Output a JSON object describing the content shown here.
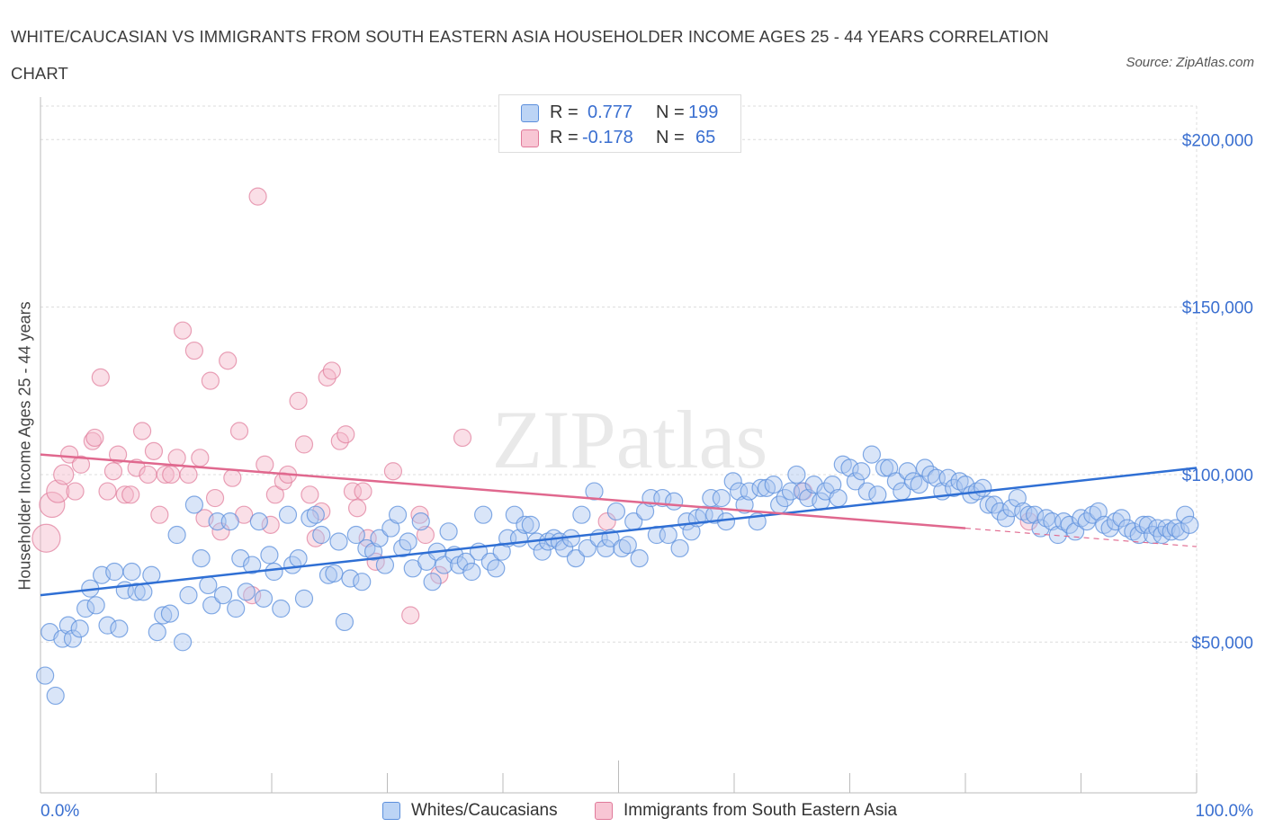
{
  "header": {
    "title": "WHITE/CAUCASIAN VS IMMIGRANTS FROM SOUTH EASTERN ASIA HOUSEHOLDER INCOME AGES 25 - 44 YEARS CORRELATION CHART",
    "source": "Source: ZipAtlas.com"
  },
  "watermark": "ZIPatlas",
  "legend_top": {
    "rows": [
      {
        "r_key": "R =",
        "r_value": "0.777",
        "n_key": "N =",
        "n_value": "199"
      },
      {
        "r_key": "R =",
        "r_value": "-0.178",
        "n_key": "N =",
        "n_value": "65"
      }
    ]
  },
  "legend_bottom": {
    "items": [
      {
        "label": "Whites/Caucasians"
      },
      {
        "label": "Immigrants from South Eastern Asia"
      }
    ]
  },
  "colors": {
    "blue_fill": "#aac6f0",
    "blue_stroke": "#5b8fdc",
    "blue_line": "#2f6fd4",
    "pink_fill": "#f5b8ca",
    "pink_stroke": "#e07a9a",
    "pink_line": "#e0688e",
    "axis_text": "#3a6fd0",
    "grid": "#dcdcdc"
  },
  "chart_data": {
    "type": "scatter",
    "title": "WHITE/CAUCASIAN VS IMMIGRANTS FROM SOUTH EASTERN ASIA HOUSEHOLDER INCOME AGES 25 - 44 YEARS CORRELATION CHART",
    "xlabel": "",
    "ylabel": "Householder Income Ages 25 - 44 years",
    "xlim": [
      0,
      100
    ],
    "ylim": [
      5000,
      210000
    ],
    "x_tick_labels": [
      "0.0%",
      "100.0%"
    ],
    "y_ticks": [
      50000,
      100000,
      150000,
      200000
    ],
    "y_tick_labels": [
      "$50,000",
      "$100,000",
      "$150,000",
      "$200,000"
    ],
    "grid": true,
    "legend_position": "top-center",
    "series": [
      {
        "name": "Whites/Caucasians",
        "r": 0.777,
        "n": 199,
        "trend": {
          "x": [
            0,
            100
          ],
          "y": [
            64000,
            102000
          ]
        },
        "points": [
          [
            0.4,
            40000
          ],
          [
            0.8,
            53000
          ],
          [
            1.3,
            34000
          ],
          [
            1.9,
            51000
          ],
          [
            2.4,
            55000
          ],
          [
            2.8,
            51000
          ],
          [
            3.4,
            54000
          ],
          [
            3.9,
            60000
          ],
          [
            4.3,
            66000
          ],
          [
            4.8,
            61000
          ],
          [
            5.3,
            70000
          ],
          [
            5.8,
            55000
          ],
          [
            6.4,
            71000
          ],
          [
            6.8,
            54000
          ],
          [
            7.3,
            65500
          ],
          [
            7.9,
            71000
          ],
          [
            8.3,
            65000
          ],
          [
            8.9,
            65000
          ],
          [
            9.6,
            70000
          ],
          [
            10.1,
            53000
          ],
          [
            10.6,
            58000
          ],
          [
            11.2,
            58500
          ],
          [
            11.8,
            82000
          ],
          [
            12.3,
            50000
          ],
          [
            12.8,
            64000
          ],
          [
            13.3,
            91000
          ],
          [
            13.9,
            75000
          ],
          [
            14.5,
            67000
          ],
          [
            14.8,
            61000
          ],
          [
            15.3,
            86000
          ],
          [
            15.8,
            64000
          ],
          [
            16.4,
            86000
          ],
          [
            16.9,
            60000
          ],
          [
            17.3,
            75000
          ],
          [
            17.8,
            65000
          ],
          [
            18.3,
            73000
          ],
          [
            18.9,
            86000
          ],
          [
            19.3,
            63000
          ],
          [
            19.8,
            76000
          ],
          [
            20.2,
            71000
          ],
          [
            20.8,
            60000
          ],
          [
            21.4,
            88000
          ],
          [
            21.8,
            73000
          ],
          [
            22.3,
            75000
          ],
          [
            22.8,
            63000
          ],
          [
            23.3,
            87000
          ],
          [
            23.8,
            88000
          ],
          [
            24.3,
            82000
          ],
          [
            24.9,
            70000
          ],
          [
            25.4,
            70500
          ],
          [
            25.8,
            80000
          ],
          [
            26.3,
            56000
          ],
          [
            26.8,
            69000
          ],
          [
            27.3,
            82000
          ],
          [
            27.8,
            68000
          ],
          [
            28.2,
            78000
          ],
          [
            28.8,
            77000
          ],
          [
            29.3,
            81000
          ],
          [
            29.8,
            73000
          ],
          [
            30.3,
            84000
          ],
          [
            30.9,
            88000
          ],
          [
            31.3,
            78000
          ],
          [
            31.8,
            80000
          ],
          [
            32.2,
            72000
          ],
          [
            32.9,
            86000
          ],
          [
            33.4,
            74000
          ],
          [
            33.9,
            68000
          ],
          [
            34.3,
            77000
          ],
          [
            34.9,
            73000
          ],
          [
            35.3,
            83000
          ],
          [
            35.8,
            76000
          ],
          [
            36.2,
            73000
          ],
          [
            36.8,
            74000
          ],
          [
            37.3,
            71000
          ],
          [
            37.9,
            77000
          ],
          [
            38.3,
            88000
          ],
          [
            38.9,
            74000
          ],
          [
            39.4,
            72000
          ],
          [
            39.9,
            77000
          ],
          [
            40.4,
            81000
          ],
          [
            41.0,
            88000
          ],
          [
            41.4,
            81000
          ],
          [
            41.9,
            85000
          ],
          [
            42.4,
            85000
          ],
          [
            42.9,
            80000
          ],
          [
            43.4,
            77000
          ],
          [
            43.9,
            80000
          ],
          [
            44.4,
            81000
          ],
          [
            44.9,
            80000
          ],
          [
            45.3,
            78000
          ],
          [
            45.9,
            81000
          ],
          [
            46.3,
            75000
          ],
          [
            46.8,
            88000
          ],
          [
            47.3,
            78000
          ],
          [
            47.9,
            95000
          ],
          [
            48.3,
            81000
          ],
          [
            48.9,
            78000
          ],
          [
            49.3,
            81000
          ],
          [
            49.8,
            89000
          ],
          [
            50.3,
            78000
          ],
          [
            50.8,
            79000
          ],
          [
            51.3,
            86000
          ],
          [
            51.8,
            75000
          ],
          [
            52.3,
            89000
          ],
          [
            52.8,
            93000
          ],
          [
            53.3,
            82000
          ],
          [
            53.8,
            93000
          ],
          [
            54.3,
            82000
          ],
          [
            54.8,
            92000
          ],
          [
            55.3,
            78000
          ],
          [
            55.9,
            86000
          ],
          [
            56.3,
            83000
          ],
          [
            56.8,
            87000
          ],
          [
            57.4,
            88000
          ],
          [
            58.0,
            93000
          ],
          [
            58.3,
            88000
          ],
          [
            58.9,
            93000
          ],
          [
            59.3,
            86000
          ],
          [
            59.9,
            98000
          ],
          [
            60.4,
            95000
          ],
          [
            60.9,
            91000
          ],
          [
            61.3,
            95000
          ],
          [
            62.0,
            86000
          ],
          [
            62.3,
            96000
          ],
          [
            62.8,
            96000
          ],
          [
            63.4,
            97000
          ],
          [
            63.9,
            91000
          ],
          [
            64.4,
            93000
          ],
          [
            64.9,
            95000
          ],
          [
            65.4,
            100000
          ],
          [
            65.9,
            95000
          ],
          [
            66.4,
            93000
          ],
          [
            66.9,
            97000
          ],
          [
            67.5,
            92000
          ],
          [
            67.9,
            95000
          ],
          [
            68.5,
            97000
          ],
          [
            69.0,
            93000
          ],
          [
            69.4,
            103000
          ],
          [
            70.0,
            102000
          ],
          [
            70.5,
            98000
          ],
          [
            71.0,
            101000
          ],
          [
            71.5,
            95000
          ],
          [
            71.9,
            106000
          ],
          [
            72.4,
            94000
          ],
          [
            73.0,
            102000
          ],
          [
            73.4,
            102000
          ],
          [
            74.0,
            98000
          ],
          [
            74.5,
            95000
          ],
          [
            75.0,
            101000
          ],
          [
            75.5,
            98000
          ],
          [
            76.0,
            97000
          ],
          [
            76.5,
            102000
          ],
          [
            77.0,
            100000
          ],
          [
            77.5,
            99000
          ],
          [
            78.0,
            95000
          ],
          [
            78.5,
            99000
          ],
          [
            79.0,
            96000
          ],
          [
            79.5,
            98000
          ],
          [
            80.0,
            97000
          ],
          [
            80.5,
            94000
          ],
          [
            81.0,
            95000
          ],
          [
            81.5,
            96000
          ],
          [
            82.0,
            91000
          ],
          [
            82.5,
            91000
          ],
          [
            83.0,
            89000
          ],
          [
            83.5,
            87000
          ],
          [
            84.0,
            90000
          ],
          [
            84.5,
            93000
          ],
          [
            85.0,
            89000
          ],
          [
            85.5,
            88000
          ],
          [
            86.0,
            88000
          ],
          [
            86.5,
            84000
          ],
          [
            87.0,
            87000
          ],
          [
            87.5,
            86000
          ],
          [
            88.0,
            82000
          ],
          [
            88.5,
            86000
          ],
          [
            89.0,
            85000
          ],
          [
            89.5,
            83000
          ],
          [
            90.0,
            87000
          ],
          [
            90.5,
            86000
          ],
          [
            91.0,
            88000
          ],
          [
            91.5,
            89000
          ],
          [
            92.0,
            85000
          ],
          [
            92.5,
            84000
          ],
          [
            93.0,
            86000
          ],
          [
            93.5,
            87000
          ],
          [
            94.0,
            84000
          ],
          [
            94.5,
            83000
          ],
          [
            95.0,
            82000
          ],
          [
            95.4,
            85000
          ],
          [
            95.8,
            85000
          ],
          [
            96.2,
            82000
          ],
          [
            96.6,
            84000
          ],
          [
            97.0,
            82000
          ],
          [
            97.4,
            84000
          ],
          [
            97.8,
            83000
          ],
          [
            98.2,
            84000
          ],
          [
            98.6,
            83000
          ],
          [
            99.0,
            88000
          ],
          [
            99.4,
            85000
          ]
        ]
      },
      {
        "name": "Immigrants from South Eastern Asia",
        "r": -0.178,
        "n": 65,
        "trend": {
          "x": [
            0,
            80
          ],
          "y": [
            106000,
            84000
          ]
        },
        "trend_dashed": {
          "x": [
            80,
            100
          ],
          "y": [
            84000,
            78500
          ]
        },
        "points": [
          [
            0.5,
            81000
          ],
          [
            1.0,
            91000
          ],
          [
            1.5,
            95000
          ],
          [
            2.0,
            100000
          ],
          [
            2.5,
            106000
          ],
          [
            3.0,
            95000
          ],
          [
            3.5,
            103000
          ],
          [
            4.5,
            110000
          ],
          [
            4.7,
            111000
          ],
          [
            5.2,
            129000
          ],
          [
            5.8,
            95000
          ],
          [
            6.3,
            101000
          ],
          [
            6.7,
            106000
          ],
          [
            7.3,
            94000
          ],
          [
            7.8,
            94000
          ],
          [
            8.3,
            102000
          ],
          [
            8.8,
            113000
          ],
          [
            9.3,
            100000
          ],
          [
            9.8,
            107000
          ],
          [
            10.3,
            88000
          ],
          [
            10.8,
            100000
          ],
          [
            11.3,
            100000
          ],
          [
            11.8,
            105000
          ],
          [
            12.3,
            143000
          ],
          [
            12.8,
            100000
          ],
          [
            13.3,
            137000
          ],
          [
            13.8,
            105000
          ],
          [
            14.2,
            87000
          ],
          [
            14.7,
            128000
          ],
          [
            15.1,
            93000
          ],
          [
            15.6,
            83000
          ],
          [
            16.2,
            134000
          ],
          [
            16.6,
            99000
          ],
          [
            17.2,
            113000
          ],
          [
            17.6,
            88000
          ],
          [
            18.3,
            64000
          ],
          [
            18.8,
            183000
          ],
          [
            19.4,
            103000
          ],
          [
            19.9,
            85000
          ],
          [
            20.3,
            94000
          ],
          [
            21.0,
            98000
          ],
          [
            21.4,
            100000
          ],
          [
            22.3,
            122000
          ],
          [
            22.8,
            109000
          ],
          [
            23.3,
            94000
          ],
          [
            23.8,
            81000
          ],
          [
            24.3,
            89000
          ],
          [
            24.8,
            129000
          ],
          [
            25.2,
            131000
          ],
          [
            25.9,
            110000
          ],
          [
            26.4,
            112000
          ],
          [
            27.0,
            95000
          ],
          [
            27.4,
            90000
          ],
          [
            27.9,
            95000
          ],
          [
            28.3,
            81000
          ],
          [
            29.0,
            74000
          ],
          [
            30.5,
            101000
          ],
          [
            32.0,
            58000
          ],
          [
            32.8,
            88000
          ],
          [
            33.3,
            82000
          ],
          [
            34.5,
            70000
          ],
          [
            36.5,
            111000
          ],
          [
            49.0,
            86000
          ],
          [
            66.0,
            95000
          ],
          [
            85.5,
            86000
          ]
        ]
      }
    ]
  }
}
